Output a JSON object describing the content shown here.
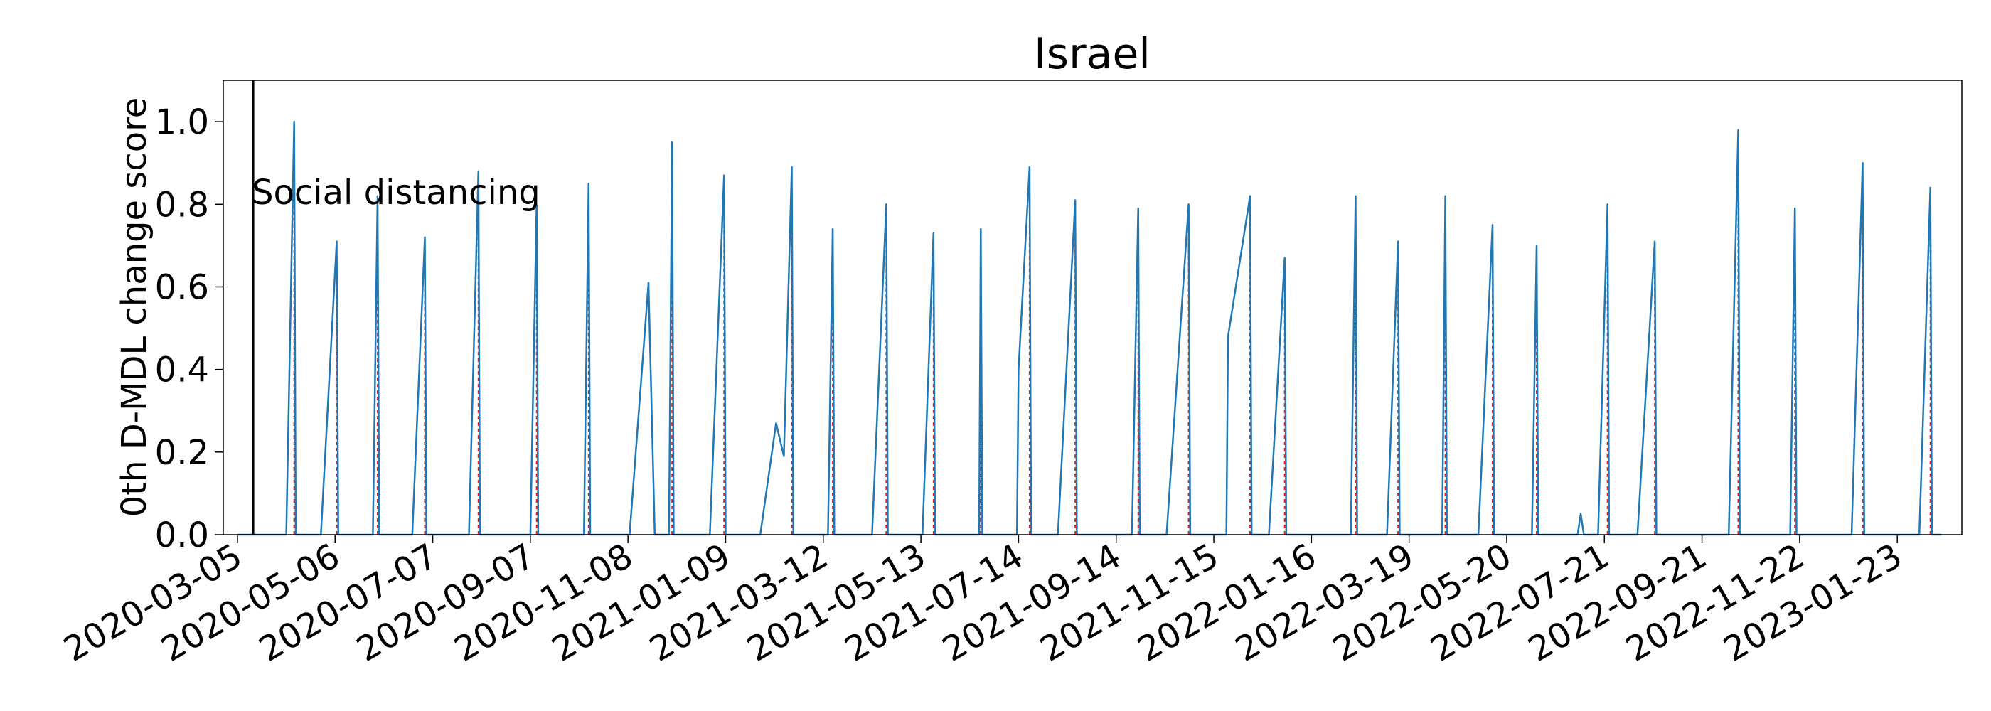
{
  "chart_data": {
    "type": "line",
    "title": "Israel",
    "y_label": "0th D-MDL change score",
    "color": "#1f77b4",
    "change_point_color": "#d62728",
    "xlim": [
      "2020-02-25",
      "2023-03-05"
    ],
    "xticks": [
      "2020-03-05",
      "2020-05-06",
      "2020-07-07",
      "2020-09-07",
      "2020-11-08",
      "2021-01-09",
      "2021-03-12",
      "2021-05-13",
      "2021-07-14",
      "2021-09-14",
      "2021-11-15",
      "2022-01-16",
      "2022-03-19",
      "2022-05-20",
      "2022-07-21",
      "2022-09-21",
      "2022-11-22",
      "2023-01-23"
    ],
    "ylim": [
      0,
      1.1
    ],
    "yticks": [
      {
        "value": 0,
        "label": "0.0"
      },
      {
        "value": 0.2,
        "label": "0.2"
      },
      {
        "value": 0.4,
        "label": "0.4"
      },
      {
        "value": 0.6,
        "label": "0.6"
      },
      {
        "value": 0.8,
        "label": "0.8"
      },
      {
        "value": 1,
        "label": "1.0"
      }
    ],
    "events": [
      {
        "label": "Social distancing",
        "date": "2020-03-15"
      }
    ],
    "x": [
      "2020-03-05",
      "2020-04-05",
      "2020-04-10",
      "2020-04-11",
      "2020-04-27",
      "2020-05-07",
      "2020-05-08",
      "2020-05-30",
      "2020-06-02",
      "2020-06-03",
      "2020-06-24",
      "2020-07-02",
      "2020-07-03",
      "2020-07-30",
      "2020-08-05",
      "2020-08-06",
      "2020-09-07",
      "2020-09-11",
      "2020-09-12",
      "2020-10-11",
      "2020-10-14",
      "2020-10-15",
      "2020-11-09",
      "2020-11-21",
      "2020-11-25",
      "2020-12-04",
      "2020-12-06",
      "2020-12-07",
      "2020-12-30",
      "2021-01-08",
      "2021-01-09",
      "2021-01-31",
      "2021-02-10",
      "2021-02-15",
      "2021-02-20",
      "2021-02-21",
      "2021-03-15",
      "2021-03-18",
      "2021-03-19",
      "2021-04-12",
      "2021-04-21",
      "2021-04-22",
      "2021-05-14",
      "2021-05-21",
      "2021-05-22",
      "2021-06-19",
      "2021-06-20",
      "2021-06-21",
      "2021-07-13",
      "2021-07-14",
      "2021-07-21",
      "2021-07-22",
      "2021-08-08",
      "2021-08-19",
      "2021-08-20",
      "2021-09-24",
      "2021-09-28",
      "2021-09-29",
      "2021-10-16",
      "2021-10-30",
      "2021-10-31",
      "2021-11-23",
      "2021-11-24",
      "2021-12-08",
      "2021-12-09",
      "2021-12-20",
      "2021-12-30",
      "2021-12-31",
      "2022-02-10",
      "2022-02-13",
      "2022-02-14",
      "2022-03-05",
      "2022-03-12",
      "2022-03-13",
      "2022-04-09",
      "2022-04-11",
      "2022-04-12",
      "2022-05-02",
      "2022-05-11",
      "2022-05-12",
      "2022-06-05",
      "2022-06-08",
      "2022-06-09",
      "2022-07-04",
      "2022-07-06",
      "2022-07-08",
      "2022-07-17",
      "2022-07-23",
      "2022-07-24",
      "2022-08-11",
      "2022-08-22",
      "2022-08-23",
      "2022-10-08",
      "2022-10-14",
      "2022-10-15",
      "2022-11-16",
      "2022-11-19",
      "2022-11-20",
      "2022-12-25",
      "2023-01-01",
      "2023-01-02",
      "2023-02-06",
      "2023-02-13",
      "2023-02-14",
      "2023-02-20"
    ],
    "values": [
      0,
      0,
      1.0,
      0,
      0,
      0.71,
      0,
      0,
      0.82,
      0,
      0,
      0.72,
      0,
      0,
      0.88,
      0,
      0,
      0.8,
      0,
      0,
      0.85,
      0,
      0,
      0.61,
      0,
      0,
      0.95,
      0,
      0,
      0.87,
      0,
      0,
      0.27,
      0.19,
      0.89,
      0,
      0,
      0.74,
      0,
      0,
      0.8,
      0,
      0,
      0.73,
      0,
      0,
      0.74,
      0,
      0,
      0.4,
      0.89,
      0,
      0,
      0.81,
      0,
      0,
      0.79,
      0,
      0,
      0.8,
      0,
      0,
      0.48,
      0.82,
      0,
      0,
      0.67,
      0,
      0,
      0.82,
      0,
      0,
      0.71,
      0,
      0,
      0.82,
      0,
      0,
      0.75,
      0,
      0,
      0.7,
      0,
      0,
      0.05,
      0,
      0,
      0.8,
      0,
      0,
      0.71,
      0,
      0,
      0.98,
      0,
      0,
      0.79,
      0,
      0,
      0.9,
      0,
      0,
      0.84,
      0,
      0
    ],
    "change_points": [
      "2020-04-10",
      "2020-05-07",
      "2020-06-02",
      "2020-07-02",
      "2020-08-05",
      "2020-09-11",
      "2020-10-14",
      "2020-12-06",
      "2021-01-08",
      "2021-02-20",
      "2021-03-18",
      "2021-04-21",
      "2021-05-21",
      "2021-06-20",
      "2021-07-21",
      "2021-08-19",
      "2021-09-28",
      "2021-10-30",
      "2021-12-08",
      "2021-12-30",
      "2022-02-13",
      "2022-03-12",
      "2022-04-11",
      "2022-05-11",
      "2022-06-08",
      "2022-07-23",
      "2022-08-22",
      "2022-10-14",
      "2022-11-19",
      "2023-01-01",
      "2023-02-13"
    ]
  }
}
